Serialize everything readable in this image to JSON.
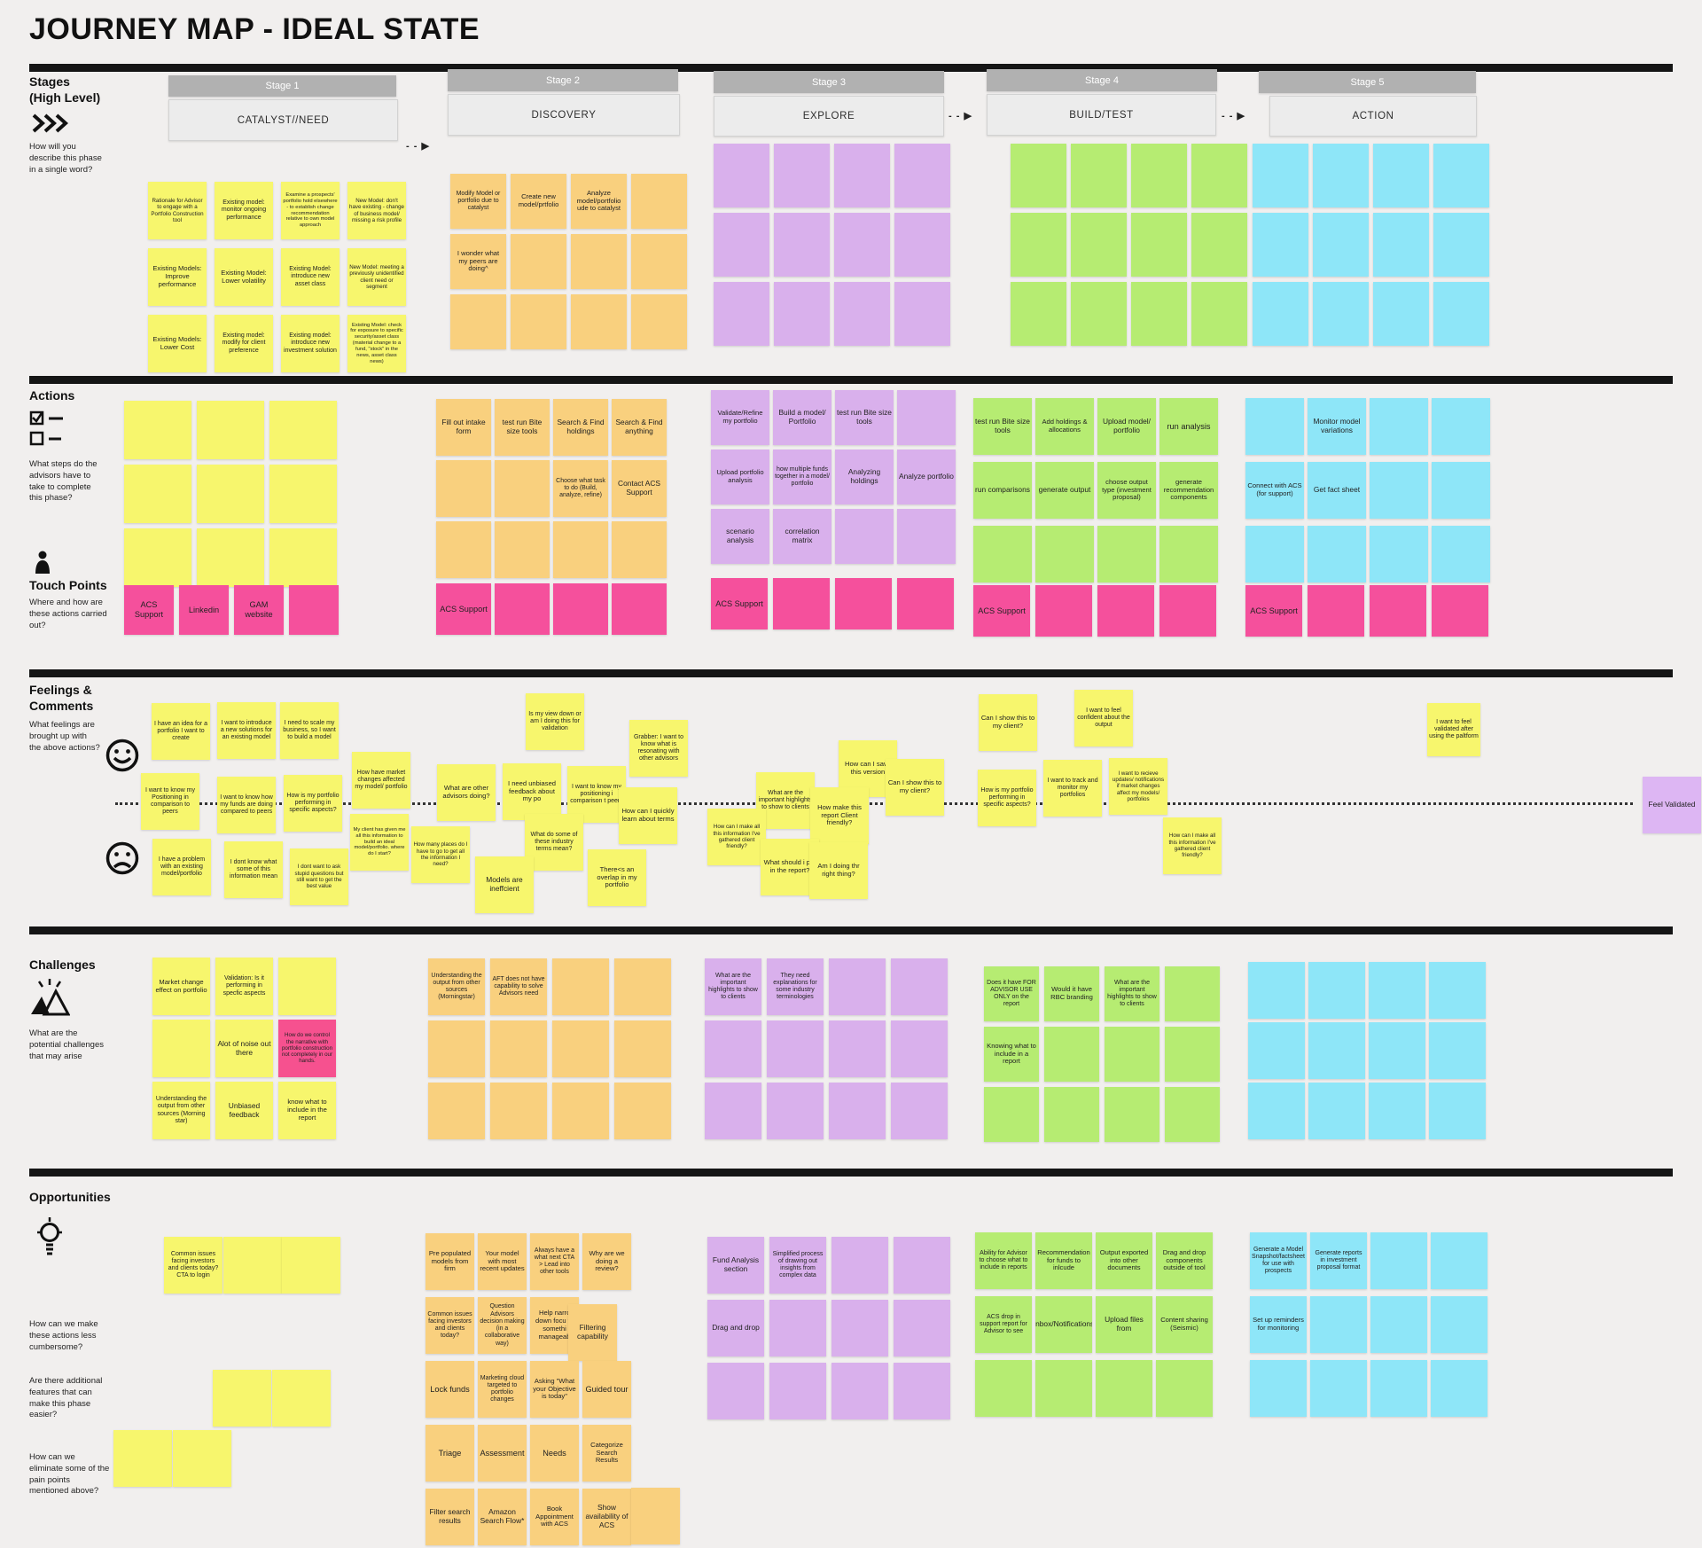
{
  "title": "JOURNEY MAP - IDEAL STATE",
  "arrow_glyph": "- - ▶",
  "colors": {
    "background": "#f1efee",
    "yellow": "#f7f66d",
    "orange": "#f9d07e",
    "purple": "#d9b0ec",
    "green": "#b6ec72",
    "blue": "#8ee6f8",
    "pink": "#f5509c",
    "hotpink": "#f6518f",
    "lavender": "#ddb6f3",
    "stage_bar": "#b1b1b1",
    "divider": "#151515"
  },
  "sections": {
    "stages": {
      "title": "Stages",
      "subtitle": "(High Level)",
      "question": "How will you describe this phase in a single word?"
    },
    "actions": {
      "title": "Actions",
      "question": "What steps do the advisors have to take to complete this phase?"
    },
    "touchpoints": {
      "title": "Touch Points",
      "question": "Where and how are these actions carried out?"
    },
    "feelings": {
      "title": "Feelings & Comments",
      "question": "What feelings are brought up with the above actions?"
    },
    "challenges": {
      "title": "Challenges",
      "question": "What are the potential challenges that may arise"
    },
    "opportunities": {
      "title": "Opportunities",
      "question1": "How can we make these actions less cumbersome?",
      "question2": "Are there additional features that can make this phase easier?",
      "question3": "How can we eliminate some of the pain points mentioned above?"
    }
  },
  "stages": [
    {
      "header": "Stage 1",
      "label": "CATALYST//NEED"
    },
    {
      "header": "Stage 2",
      "label": "DISCOVERY"
    },
    {
      "header": "Stage 3",
      "label": "EXPLORE"
    },
    {
      "header": "Stage 4",
      "label": "BUILD/TEST"
    },
    {
      "header": "Stage 5",
      "label": "ACTION"
    }
  ],
  "notes": {
    "stages_s1": [
      "Rationale for Advisor to engage with a Portfolio Construction tool",
      "Existing model: monitor ongoing performance",
      "Examine a prospects' portfolio hold elsewhere - to establish change recommendation relative to own model approach",
      "New Model: don't have existing - change of business model/ missing a risk profile",
      "Existing Models: Improve performance",
      "Existing Model: Lower volatility",
      "Existing Model: introduce new asset class",
      "New Model: meeting a previously unidentified client need or segment",
      "Existing Models: Lower Cost",
      "Existing model: modify for client preference",
      "Existing model: introduce new investment solution",
      "Existing Model: check for exposure to specific security/asset class (material change to a fund, \"stock\" in the news, asset class news)"
    ],
    "stages_s2": [
      "Modify Model or portfolio due to catalyst",
      "Create new model/prtfolio",
      "Analyze model/portfolio ude to catalyst",
      "",
      "I wonder what my peers are doing^",
      "",
      "",
      "",
      "",
      "",
      "",
      ""
    ],
    "stages_s3": [
      "",
      "",
      "",
      "",
      "",
      "",
      "",
      "",
      "",
      "",
      "",
      ""
    ],
    "stages_s4": [
      "",
      "",
      "",
      "",
      "",
      "",
      "",
      "",
      "",
      "",
      "",
      ""
    ],
    "stages_s5": [
      "",
      "",
      "",
      "",
      "",
      "",
      "",
      "",
      "",
      "",
      "",
      ""
    ],
    "actions_s1": [
      "",
      "",
      "",
      "",
      "",
      "",
      "",
      "",
      ""
    ],
    "actions_s2": [
      "Fill out intake form",
      "test run Bite size tools",
      "Search & Find holdings",
      "Search & Find anything",
      "",
      "",
      "Choose what task to do (Build, analyze, refine)",
      "Contact ACS Support",
      "",
      "",
      "",
      ""
    ],
    "actions_s3": [
      "Validate/Refine my portfolio",
      "Build a model/ Portfolio",
      "test run Bite size tools",
      "",
      "Upload portfolio analysis",
      "how multiple funds together in a model/ portfolio",
      "Analyzing holdings",
      "Analyze portfolio",
      "scenario analysis",
      "correlation matrix",
      "",
      ""
    ],
    "actions_s4": [
      "test run Bite size tools",
      "Add holdings & allocations",
      "Upload model/ portfolio",
      "run analysis",
      "run comparisons",
      "generate output",
      "choose output type (investment proposal)",
      "generate recommendation components",
      "",
      "",
      "",
      ""
    ],
    "actions_s5": [
      "",
      "Monitor model variations",
      "",
      "",
      "Connect with ACS (for support)",
      "Get fact sheet",
      "",
      "",
      "",
      "",
      "",
      ""
    ],
    "touch_s1": [
      "ACS Support",
      "Linkedin",
      "GAM website",
      ""
    ],
    "touch_s2": [
      "ACS Support",
      "",
      "",
      ""
    ],
    "touch_s3": [
      "ACS Support",
      "",
      "",
      ""
    ],
    "touch_s4": [
      "ACS Support",
      "",
      "",
      ""
    ],
    "touch_s5": [
      "ACS Support",
      "",
      "",
      ""
    ],
    "feel_s1": [
      "I have an idea for a portfolio I want to create",
      "I want to introduce a new solutions for an existing model",
      "I need to scale my business, so I want to build a model",
      "I want to know my Positioning in comparison to peers",
      "I want to know how my funds are doing compared to peers",
      "How is my portfolio performing in specific aspects?",
      "How have market changes affected my model/ portfolio",
      "I have a problem with an existing model/portfolio",
      "I dont know what some of this information mean",
      "I dont want to ask stupid questions but still want to get the best value",
      "My client has given me all this information to build an ideal model/portfolio. where do I start?"
    ],
    "feel_s2": [
      "Is my view down or am I doing this for validation",
      "Grabber: I want to know what is resonating with other advisors",
      "What are other advisors doing?",
      "I need unbiased feedback about my po",
      "I want to know my positioning i comparison t peers",
      "How can I quickly learn about terms",
      "How many places do I have to go to get all the information I need?",
      "What do some of these industry terms mean?",
      "Models are ineffcient",
      "There<s an overlap in my portfolio"
    ],
    "feel_s3": [
      "How can I save this version",
      "What are the important highlights to show to clients",
      "How make this report Client friendly?",
      "Can I show this to my client?",
      "How can I make all this information I've gathered client friendly?",
      "What should i put in the report?",
      "Am I doing thr right thing?"
    ],
    "feel_s4": [
      "Can I show this to my client?",
      "I want to feel confident about the output",
      "How is my portfolio performing in specific aspects?",
      "I want to track and monitor my portfolios",
      "I want to recieve updates/ notifications if market changes affect my models/ portfolios",
      "How can I make all this information I've gathered client friendly?"
    ],
    "feel_s5": [
      "I want to feel validated after using the paltform"
    ],
    "feel_end": [
      "Feel Validated"
    ],
    "chal_s1": [
      "Market change effect on portfolio",
      "Validation: Is it performing in specfic aspects",
      "",
      "",
      "Alot of noise out there",
      "How do we control the narrative with portfolio construction not completely in our hands.",
      "Understanding the output from other sources (Morning star)",
      "Unbiased feedback",
      "know what to include in the report"
    ],
    "chal_s2": [
      "Understanding the output from other sources (Morningstar)",
      "AFT does not have capability to solve Advisors need",
      "",
      "",
      "",
      "",
      "",
      "",
      "",
      "",
      "",
      ""
    ],
    "chal_s3": [
      "What are the important highlights to show to clients",
      "They need explanations for some industry terminologies",
      "",
      "",
      "",
      "",
      "",
      "",
      "",
      "",
      "",
      ""
    ],
    "chal_s4": [
      "Does it have FOR ADVISOR USE ONLY on the report",
      "Would it have RBC branding",
      "What are the important highlights to show to clients",
      "",
      "Knowing what to include in a report",
      "",
      "",
      "",
      "",
      "",
      "",
      ""
    ],
    "chal_s5": [
      "",
      "",
      "",
      "",
      "",
      "",
      "",
      "",
      "",
      "",
      "",
      ""
    ],
    "opp_s1": [
      "Common issues facing investors and clients today? CTA to login",
      "",
      "",
      "",
      "",
      "",
      ""
    ],
    "opp_s2": [
      "Pre populated models from firm",
      "Your model with most recent updates",
      "Always have a what next CTA > Lead into other tools",
      "Why are we doing a review?",
      "Common issues facing investors and clients today?",
      "Question Advisors decision making (in a collaborative way)",
      "Help narrc down focu to somethi manageab",
      "Filtering capability",
      "Lock funds",
      "Marketing cloud targeted to portfolio changes",
      "Asking \"What your Objective is today\"",
      "Guided tour",
      "Triage",
      "Assessment",
      "Needs",
      "Categorize Search Results",
      "Filter search results",
      "Amazon Search Flow*",
      "Book Appointment with ACS",
      "Show availability of ACS"
    ],
    "opp_s2x": [
      ""
    ],
    "opp_s3": [
      "Fund Analysis section",
      "Simplified process of drawing out insights from complex data",
      "",
      "",
      "Drag and drop",
      "",
      "",
      "",
      "",
      "",
      "",
      ""
    ],
    "opp_s4": [
      "Ability for Advisor to choose what to include in reports",
      "Recommendation for funds to inlcude",
      "Output exported into other documents",
      "Drag and drop components outside of tool",
      "ACS drop in support report for Advisor to see",
      "Inbox/Notifications",
      "Upload files from",
      "Content sharing (Seismic)",
      "",
      "",
      "",
      ""
    ],
    "opp_s5": [
      "Generate a Model Snapshot/factsheet for use with prospects",
      "Generate reports in investment proposal format",
      "",
      "",
      "Set up reminders for monitoring",
      "",
      "",
      "",
      "",
      "",
      "",
      ""
    ]
  }
}
